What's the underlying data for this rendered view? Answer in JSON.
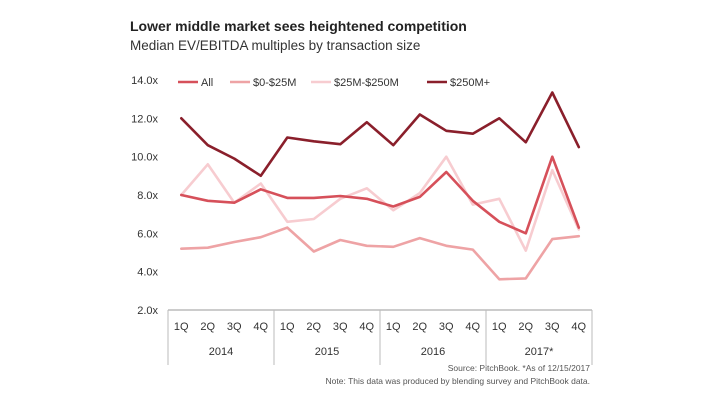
{
  "chart_data": {
    "type": "line",
    "title": "Lower middle market sees heightened competition",
    "subtitle": "Median EV/EBITDA multiples by transaction size",
    "quarters": [
      "1Q",
      "2Q",
      "3Q",
      "4Q",
      "1Q",
      "2Q",
      "3Q",
      "4Q",
      "1Q",
      "2Q",
      "3Q",
      "4Q",
      "1Q",
      "2Q",
      "3Q",
      "4Q"
    ],
    "years": [
      "2014",
      "2015",
      "2016",
      "2017*"
    ],
    "y_ticks": [
      "2.0x",
      "4.0x",
      "6.0x",
      "8.0x",
      "10.0x",
      "12.0x",
      "14.0x"
    ],
    "ylim": [
      2,
      14
    ],
    "legend_position": "top",
    "series": [
      {
        "name": "All",
        "color": "#d6505a",
        "values": [
          8.0,
          7.7,
          7.6,
          8.3,
          7.85,
          7.85,
          7.95,
          7.8,
          7.4,
          7.9,
          9.2,
          7.7,
          6.6,
          6.0,
          10.0,
          6.3
        ]
      },
      {
        "name": "$0-$25M",
        "color": "#eea3a5",
        "values": [
          5.2,
          5.25,
          5.55,
          5.8,
          6.3,
          5.05,
          5.65,
          5.35,
          5.3,
          5.75,
          5.35,
          5.15,
          3.6,
          3.65,
          5.7,
          5.85
        ]
      },
      {
        "name": "$25M-$250M",
        "color": "#f7ccd0",
        "values": [
          8.0,
          9.6,
          7.6,
          8.6,
          6.6,
          6.75,
          7.8,
          8.35,
          7.2,
          8.1,
          10.0,
          7.5,
          7.8,
          5.1,
          9.3,
          6.2
        ]
      },
      {
        "name": "$250M+",
        "color": "#8a1f2b",
        "values": [
          12.0,
          10.6,
          9.9,
          9.0,
          11.0,
          10.8,
          10.65,
          11.8,
          10.6,
          12.2,
          11.35,
          11.2,
          12.0,
          10.75,
          13.35,
          10.5
        ]
      }
    ]
  },
  "footer": {
    "source": "Source: PitchBook. *As of 12/15/2017",
    "note": "Note: This data was produced by blending survey and PitchBook data."
  }
}
